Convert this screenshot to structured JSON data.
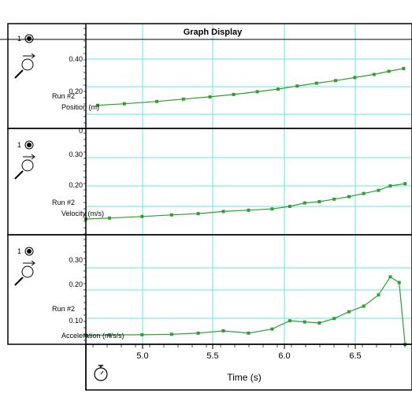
{
  "window": {
    "title": "Graph Display"
  },
  "time_axis": {
    "label": "Time (s)",
    "ticks": [
      "5.0",
      "5.5",
      "6.0",
      "6.5"
    ],
    "icon": "stopwatch-icon"
  },
  "panels": [
    {
      "channel": "1",
      "run_label": "Run #2",
      "quantity_label": "Position (m)",
      "icon": "motion-sensor-icon"
    },
    {
      "channel": "1",
      "run_label": "Run #2",
      "quantity_label": "Velocity (m/s)",
      "icon": "motion-sensor-icon"
    },
    {
      "channel": "1",
      "run_label": "Run #2",
      "quantity_label": "Acceleration (m/s/s)",
      "icon": "motion-sensor-icon"
    }
  ],
  "colors": {
    "data": "#2e9e2e",
    "grid": "#5ee8e8",
    "frame": "#000000"
  },
  "chart_data": [
    {
      "type": "line",
      "title": "Graph Display",
      "xlabel": "Time (s)",
      "ylabel": "Position (m)",
      "xlim": [
        4.62,
        6.8
      ],
      "ylim": [
        0,
        0.5
      ],
      "yticks": [
        "0",
        "0.20",
        "0.40"
      ],
      "grid": true,
      "series": [
        {
          "name": "Run #2",
          "x": [
            4.7,
            4.88,
            5.1,
            5.28,
            5.46,
            5.62,
            5.78,
            5.92,
            6.05,
            6.18,
            6.31,
            6.44,
            6.57,
            6.67,
            6.77
          ],
          "y": [
            0.165,
            0.175,
            0.19,
            0.205,
            0.22,
            0.235,
            0.253,
            0.27,
            0.29,
            0.308,
            0.325,
            0.345,
            0.365,
            0.385,
            0.403
          ]
        }
      ]
    },
    {
      "type": "line",
      "title": "",
      "xlabel": "Time (s)",
      "ylabel": "Velocity (m/s)",
      "xlim": [
        4.62,
        6.8
      ],
      "ylim": [
        0.1,
        0.35
      ],
      "yticks": [
        "0.20",
        "0.30"
      ],
      "grid": true,
      "series": [
        {
          "name": "Run #2",
          "x": [
            4.62,
            4.78,
            5.0,
            5.2,
            5.38,
            5.55,
            5.72,
            5.88,
            6.0,
            6.1,
            6.2,
            6.3,
            6.4,
            6.5,
            6.6,
            6.68,
            6.78
          ],
          "y": [
            0.15,
            0.153,
            0.158,
            0.163,
            0.167,
            0.174,
            0.178,
            0.182,
            0.19,
            0.201,
            0.205,
            0.213,
            0.221,
            0.231,
            0.241,
            0.255,
            0.262
          ]
        }
      ]
    },
    {
      "type": "line",
      "title": "",
      "xlabel": "Time (s)",
      "ylabel": "Acceleration (m/s/s)",
      "xlim": [
        4.62,
        6.8
      ],
      "ylim": [
        0,
        0.35
      ],
      "yticks": [
        "0.10",
        "0.20",
        "0.30"
      ],
      "grid": true,
      "series": [
        {
          "name": "Run #2",
          "x": [
            4.62,
            4.78,
            5.0,
            5.2,
            5.38,
            5.55,
            5.72,
            5.88,
            6.0,
            6.1,
            6.2,
            6.3,
            6.4,
            6.5,
            6.6,
            6.68,
            6.74,
            6.78
          ],
          "y": [
            0.05,
            0.052,
            0.053,
            0.055,
            0.06,
            0.07,
            0.06,
            0.078,
            0.115,
            0.11,
            0.105,
            0.125,
            0.155,
            0.18,
            0.23,
            0.31,
            0.285,
            0.01
          ]
        }
      ]
    }
  ]
}
